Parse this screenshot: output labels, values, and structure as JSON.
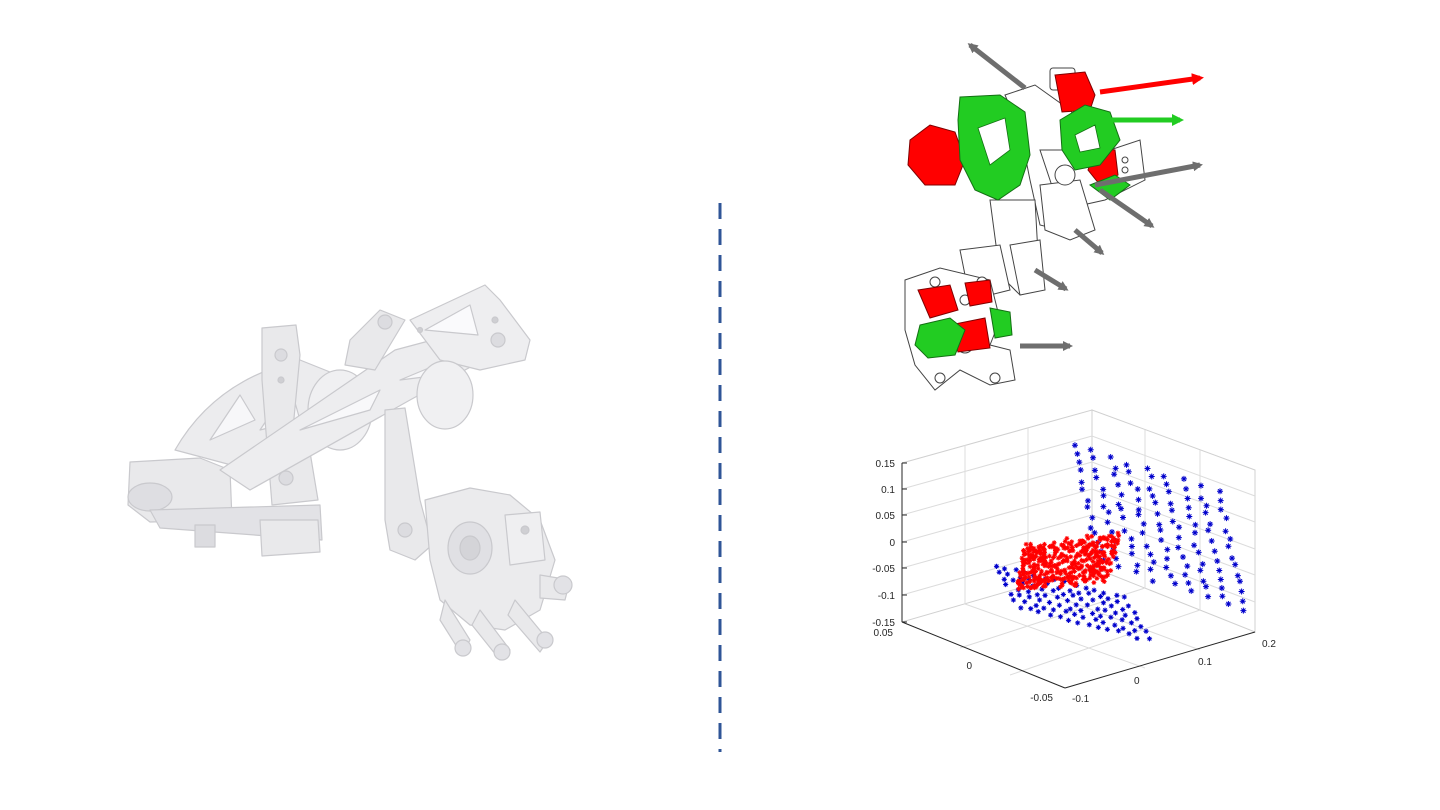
{
  "slide": {
    "background": "#ffffff",
    "divider_color": "#2f5597"
  },
  "left_figure": {
    "subject": "exoskeleton-cad-render",
    "body_color": "#e8e8ea"
  },
  "right_top_figure": {
    "subject": "exoskeleton-joint-axes",
    "colors": {
      "actuator": "#ff0000",
      "bracket": "#22cc22",
      "active_axis_red": "#ff0000",
      "active_axis_green": "#22cc22",
      "passive_axis": "#6e6e6e",
      "frame": "#ffffff"
    }
  },
  "chart_data": {
    "type": "scatter",
    "projection": "3d",
    "grid": true,
    "ticks": {
      "z": [
        "0.15",
        "0.1",
        "0.05",
        "0",
        "-0.05",
        "-0.1",
        "-0.15"
      ],
      "y_left": [
        "0.05",
        "0",
        "-0.05"
      ],
      "x_right": [
        "-0.1",
        "0",
        "0.1",
        "0.2"
      ]
    },
    "zlim": [
      -0.15,
      0.15
    ],
    "ylim": [
      -0.05,
      0.05
    ],
    "xlim": [
      -0.1,
      0.2
    ],
    "series": [
      {
        "marker": "*",
        "color": "#0000cc",
        "extent": "large workspace volume"
      },
      {
        "marker": "*",
        "color": "#ff0000",
        "extent": "small sub-volume"
      }
    ]
  }
}
